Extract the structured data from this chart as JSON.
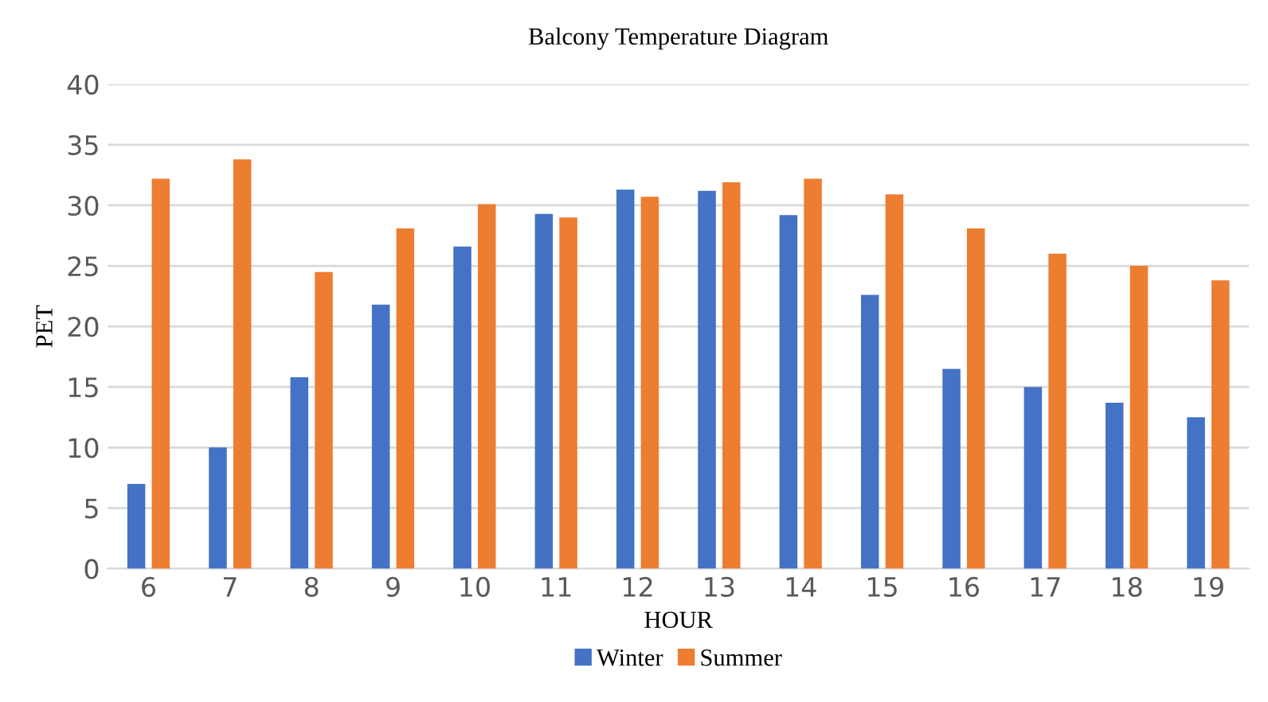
{
  "chart_data": {
    "type": "bar",
    "title": "Balcony Temperature Diagram",
    "xlabel": "HOUR",
    "ylabel": "PET",
    "categories": [
      "6",
      "7",
      "8",
      "9",
      "10",
      "11",
      "12",
      "13",
      "14",
      "15",
      "16",
      "17",
      "18",
      "19"
    ],
    "series": [
      {
        "name": "Winter",
        "color": "#4472c4",
        "values": [
          7.0,
          10.0,
          15.8,
          21.8,
          26.6,
          29.3,
          31.3,
          31.2,
          29.2,
          22.6,
          16.5,
          15.0,
          13.7,
          12.5
        ]
      },
      {
        "name": "Summer",
        "color": "#ed7d31",
        "values": [
          32.2,
          33.8,
          24.5,
          28.1,
          30.1,
          29.0,
          30.7,
          31.9,
          32.2,
          30.9,
          28.1,
          26.0,
          25.0,
          23.8
        ]
      }
    ],
    "ylim": [
      0,
      40
    ],
    "yticks": [
      0,
      5,
      10,
      15,
      20,
      25,
      30,
      35,
      40
    ],
    "grid": "y",
    "legend": "bottom"
  }
}
